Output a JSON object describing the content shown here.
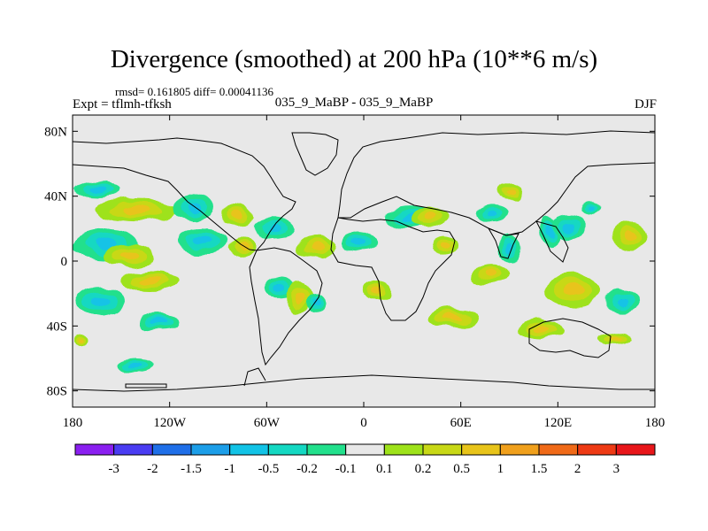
{
  "header": {
    "title": "Divergence (smoothed) at 200 hPa (10**6 m/s)",
    "stats": "rmsd= 0.161805 diff= 0.00041136",
    "experiment": "Expt = tflmh-tfksh",
    "run": "035_9_MaBP - 035_9_MaBP",
    "season": "DJF"
  },
  "chart_data": {
    "type": "heatmap",
    "title": "Divergence (smoothed) at 200 hPa (10**6 m/s)",
    "xlabel": "",
    "ylabel": "",
    "xlim": [
      -180,
      180
    ],
    "ylim": [
      -90,
      90
    ],
    "x_ticks": [
      {
        "value": -180,
        "label": "180"
      },
      {
        "value": -120,
        "label": "120W"
      },
      {
        "value": -60,
        "label": "60W"
      },
      {
        "value": 0,
        "label": "0"
      },
      {
        "value": 60,
        "label": "60E"
      },
      {
        "value": 120,
        "label": "120E"
      },
      {
        "value": 180,
        "label": "180"
      }
    ],
    "y_ticks": [
      {
        "value": 80,
        "label": "80N"
      },
      {
        "value": 40,
        "label": "40N"
      },
      {
        "value": 0,
        "label": "0"
      },
      {
        "value": -40,
        "label": "40S"
      },
      {
        "value": -80,
        "label": "80S"
      }
    ],
    "colorbar": {
      "levels": [
        "-3",
        "-2",
        "-1.5",
        "-1",
        "-0.5",
        "-0.2",
        "-0.1",
        "0.1",
        "0.2",
        "0.5",
        "1",
        "1.5",
        "2",
        "3"
      ],
      "colors": [
        "#8a1ff0",
        "#4a3cf2",
        "#1f6fe8",
        "#1c9ee8",
        "#12c3e6",
        "#14d8c2",
        "#22e08c",
        "#e8e8e8",
        "#9ee21a",
        "#c8d816",
        "#e8c41a",
        "#f0a01c",
        "#f06a18",
        "#ee3a14",
        "#e8161a"
      ]
    },
    "anomaly_areas": [
      {
        "lon": -160,
        "lat": 10,
        "rx": 20,
        "ry": 10,
        "cls": "neg"
      },
      {
        "lon": -165,
        "lat": 44,
        "rx": 14,
        "ry": 5,
        "cls": "neg"
      },
      {
        "lon": -140,
        "lat": 32,
        "rx": 25,
        "ry": 7,
        "cls": "pos"
      },
      {
        "lon": -105,
        "lat": 33,
        "rx": 12,
        "ry": 9,
        "cls": "neg"
      },
      {
        "lon": -100,
        "lat": 12,
        "rx": 16,
        "ry": 8,
        "cls": "neg"
      },
      {
        "lon": -145,
        "lat": 3,
        "rx": 15,
        "ry": 7,
        "cls": "pos"
      },
      {
        "lon": -163,
        "lat": -25,
        "rx": 15,
        "ry": 10,
        "cls": "neg"
      },
      {
        "lon": -132,
        "lat": -12,
        "rx": 18,
        "ry": 6,
        "cls": "pos"
      },
      {
        "lon": -126,
        "lat": -38,
        "rx": 13,
        "ry": 5,
        "cls": "neg"
      },
      {
        "lon": -173,
        "lat": -48,
        "rx": 5,
        "ry": 3,
        "cls": "pos"
      },
      {
        "lon": -140,
        "lat": -64,
        "rx": 11,
        "ry": 4,
        "cls": "neg"
      },
      {
        "lon": -78,
        "lat": 28,
        "rx": 10,
        "ry": 7,
        "cls": "pos"
      },
      {
        "lon": -55,
        "lat": 20,
        "rx": 13,
        "ry": 8,
        "cls": "neg"
      },
      {
        "lon": -75,
        "lat": 8,
        "rx": 8,
        "ry": 6,
        "cls": "pos"
      },
      {
        "lon": -52,
        "lat": -16,
        "rx": 10,
        "ry": 6,
        "cls": "neg"
      },
      {
        "lon": -40,
        "lat": -22,
        "rx": 8,
        "ry": 9,
        "cls": "pos"
      },
      {
        "lon": -30,
        "lat": -25,
        "rx": 6,
        "ry": 6,
        "cls": "neg"
      },
      {
        "lon": -30,
        "lat": 8,
        "rx": 12,
        "ry": 7,
        "cls": "pos"
      },
      {
        "lon": -3,
        "lat": 12,
        "rx": 11,
        "ry": 6,
        "cls": "neg"
      },
      {
        "lon": 8,
        "lat": -18,
        "rx": 10,
        "ry": 6,
        "cls": "pos"
      },
      {
        "lon": 28,
        "lat": 27,
        "rx": 14,
        "ry": 7,
        "cls": "neg"
      },
      {
        "lon": 40,
        "lat": 27,
        "rx": 12,
        "ry": 6,
        "cls": "pos"
      },
      {
        "lon": 50,
        "lat": 10,
        "rx": 8,
        "ry": 6,
        "cls": "pos"
      },
      {
        "lon": 55,
        "lat": -35,
        "rx": 15,
        "ry": 6,
        "cls": "pos"
      },
      {
        "lon": 78,
        "lat": -8,
        "rx": 11,
        "ry": 6,
        "cls": "pos"
      },
      {
        "lon": 90,
        "lat": 7,
        "rx": 7,
        "ry": 9,
        "cls": "neg"
      },
      {
        "lon": 80,
        "lat": 30,
        "rx": 10,
        "ry": 5,
        "cls": "neg"
      },
      {
        "lon": 115,
        "lat": 17,
        "rx": 6,
        "ry": 10,
        "cls": "neg"
      },
      {
        "lon": 127,
        "lat": 21,
        "rx": 10,
        "ry": 8,
        "cls": "neg"
      },
      {
        "lon": 140,
        "lat": 33,
        "rx": 6,
        "ry": 4,
        "cls": "neg"
      },
      {
        "lon": 165,
        "lat": 15,
        "rx": 12,
        "ry": 9,
        "cls": "pos"
      },
      {
        "lon": 130,
        "lat": -18,
        "rx": 18,
        "ry": 10,
        "cls": "pos"
      },
      {
        "lon": 160,
        "lat": -25,
        "rx": 10,
        "ry": 7,
        "cls": "neg"
      },
      {
        "lon": 110,
        "lat": -42,
        "rx": 14,
        "ry": 6,
        "cls": "pos"
      },
      {
        "lon": 155,
        "lat": -48,
        "rx": 12,
        "ry": 4,
        "cls": "pos"
      },
      {
        "lon": 90,
        "lat": 43,
        "rx": 8,
        "ry": 5,
        "cls": "pos"
      }
    ]
  }
}
